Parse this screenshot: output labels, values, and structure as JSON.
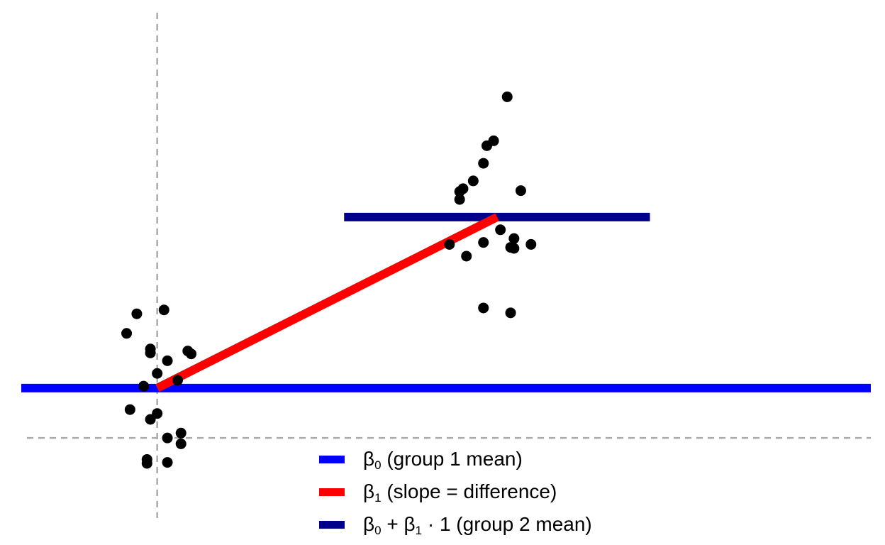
{
  "chart_data": {
    "type": "scatter",
    "title": "",
    "xlabel": "",
    "ylabel": "",
    "axes_visible": false,
    "grid": false,
    "xlim": [
      -0.4,
      2.1
    ],
    "ylim": [
      -0.95,
      4.35
    ],
    "zero_reference_lines": {
      "x": 0,
      "y": 0,
      "style": "dashed",
      "color": "#aaaaaa"
    },
    "points": [
      {
        "x": -0.06,
        "y": 1.27
      },
      {
        "x": 0.02,
        "y": 1.31
      },
      {
        "x": -0.09,
        "y": 1.07
      },
      {
        "x": -0.02,
        "y": 0.91
      },
      {
        "x": -0.02,
        "y": 0.87
      },
      {
        "x": 0.03,
        "y": 0.79
      },
      {
        "x": 0.09,
        "y": 0.89
      },
      {
        "x": 0.1,
        "y": 0.86
      },
      {
        "x": -0.0,
        "y": 0.66
      },
      {
        "x": 0.06,
        "y": 0.59
      },
      {
        "x": -0.04,
        "y": 0.53
      },
      {
        "x": -0.08,
        "y": 0.29
      },
      {
        "x": -0.0,
        "y": 0.25
      },
      {
        "x": -0.02,
        "y": 0.19
      },
      {
        "x": 0.03,
        "y": -0.0
      },
      {
        "x": 0.07,
        "y": 0.05
      },
      {
        "x": 0.07,
        "y": -0.06
      },
      {
        "x": -0.03,
        "y": -0.22
      },
      {
        "x": -0.03,
        "y": -0.26
      },
      {
        "x": 0.03,
        "y": -0.25
      },
      {
        "x": 1.03,
        "y": 3.49
      },
      {
        "x": 0.99,
        "y": 3.04
      },
      {
        "x": 0.97,
        "y": 2.99
      },
      {
        "x": 0.96,
        "y": 2.81
      },
      {
        "x": 0.93,
        "y": 2.63
      },
      {
        "x": 0.9,
        "y": 2.55
      },
      {
        "x": 0.89,
        "y": 2.52
      },
      {
        "x": 0.89,
        "y": 2.44
      },
      {
        "x": 1.07,
        "y": 2.53
      },
      {
        "x": 0.86,
        "y": 1.98
      },
      {
        "x": 0.96,
        "y": 2.0
      },
      {
        "x": 0.91,
        "y": 1.86
      },
      {
        "x": 1.04,
        "y": 1.95
      },
      {
        "x": 1.05,
        "y": 1.94
      },
      {
        "x": 1.01,
        "y": 2.13
      },
      {
        "x": 1.05,
        "y": 2.04
      },
      {
        "x": 1.1,
        "y": 1.98
      },
      {
        "x": 0.96,
        "y": 1.33
      },
      {
        "x": 1.04,
        "y": 1.28
      }
    ],
    "series": [
      {
        "name": "β0 (group 1 mean)",
        "kind": "hline",
        "y": 0.51,
        "x_range": [
          -0.4,
          2.1
        ],
        "color": "#0000ff"
      },
      {
        "name": "β1 (slope = difference)",
        "kind": "segment",
        "x": [
          0,
          1
        ],
        "y": [
          0.51,
          2.26
        ],
        "color": "#ff0000"
      },
      {
        "name": "β0 + β1 · 1 (group 2 mean)",
        "kind": "hline",
        "y": 2.26,
        "x_range": [
          0.55,
          1.45
        ],
        "color": "#00008b"
      }
    ],
    "legend": {
      "placement": "bottom-center",
      "entries": [
        {
          "base": "β",
          "sub": "0",
          "rest": " (group 1 mean)",
          "color": "#0000ff"
        },
        {
          "base": "β",
          "sub": "1",
          "rest": " (slope = difference)",
          "color": "#ff0000"
        },
        {
          "base": "β",
          "sub": "0",
          "mid": " + β",
          "sub2": "1",
          "rest": " · 1 (group 2 mean)",
          "color": "#00008b"
        }
      ]
    }
  }
}
